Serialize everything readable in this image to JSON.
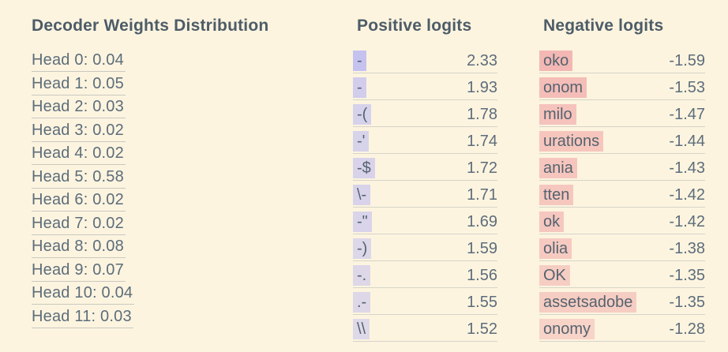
{
  "page": {
    "background_color": "#fcf4df",
    "text_color": "#5d6d7b",
    "title_color": "#4d5c68",
    "underline_color": "#d5d3ca",
    "positive_highlight_color": "#c5c2f0",
    "negative_highlight_color": "#f3b8b4"
  },
  "decoder_weights": {
    "title": "Decoder Weights Distribution",
    "rows": [
      {
        "label": "Head 0: 0.04"
      },
      {
        "label": "Head 1: 0.05"
      },
      {
        "label": "Head 2: 0.03"
      },
      {
        "label": "Head 3: 0.02"
      },
      {
        "label": "Head 4: 0.02"
      },
      {
        "label": "Head 5: 0.58"
      },
      {
        "label": "Head 6: 0.02"
      },
      {
        "label": "Head 7: 0.02"
      },
      {
        "label": "Head 8: 0.08"
      },
      {
        "label": "Head 9: 0.07"
      },
      {
        "label": "Head 10: 0.04"
      },
      {
        "label": "Head 11: 0.03"
      }
    ]
  },
  "positive_logits": {
    "title": "Positive logits",
    "rows": [
      {
        "token": "-",
        "value": "2.33"
      },
      {
        "token": "-",
        "value": "1.93"
      },
      {
        "token": "-(",
        "value": "1.78"
      },
      {
        "token": "-'",
        "value": "1.74"
      },
      {
        "token": "-$",
        "value": "1.72"
      },
      {
        "token": "\\-",
        "value": "1.71"
      },
      {
        "token": "-\"",
        "value": "1.69"
      },
      {
        "token": "-)",
        "value": "1.59"
      },
      {
        "token": "-.",
        "value": "1.56"
      },
      {
        "token": ".-",
        "value": "1.55"
      },
      {
        "token": "\\\\",
        "value": "1.52"
      }
    ]
  },
  "negative_logits": {
    "title": "Negative logits",
    "rows": [
      {
        "token": "oko",
        "value": "-1.59"
      },
      {
        "token": "onom",
        "value": "-1.53"
      },
      {
        "token": "milo",
        "value": "-1.47"
      },
      {
        "token": "urations",
        "value": "-1.44"
      },
      {
        "token": "ania",
        "value": "-1.43"
      },
      {
        "token": "tten",
        "value": "-1.42"
      },
      {
        "token": "ok",
        "value": "-1.42"
      },
      {
        "token": "olia",
        "value": "-1.38"
      },
      {
        "token": "OK",
        "value": "-1.35"
      },
      {
        "token": "assetsadobe",
        "value": "-1.35"
      },
      {
        "token": "onomy",
        "value": "-1.28"
      }
    ]
  }
}
